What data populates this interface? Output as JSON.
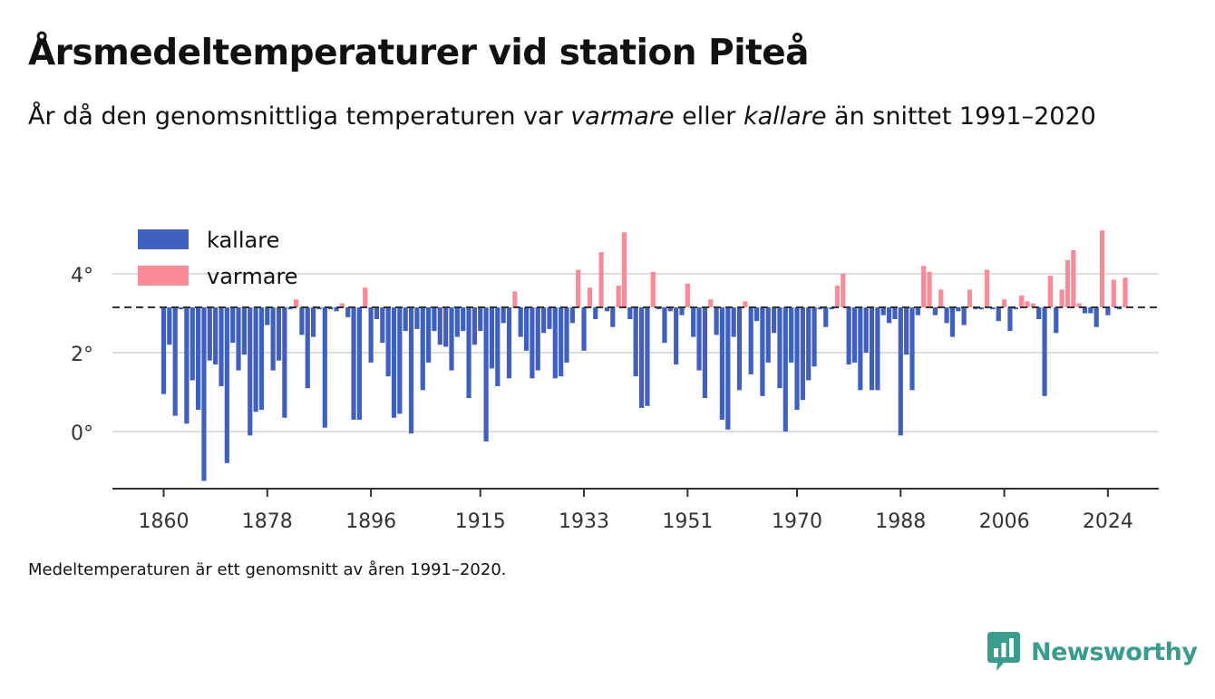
{
  "header": {
    "title": "Årsmedeltemperaturer vid station Piteå",
    "subtitle_part1": "År då den genomsnittliga temperaturen var ",
    "subtitle_em1": "varmare",
    "subtitle_part2": " eller ",
    "subtitle_em2": "kallare",
    "subtitle_part3": " än snittet 1991–2020"
  },
  "footer": {
    "note": "Medeltemperaturen är ett genomsnitt av åren 1991–2020.",
    "brand": "Newsworthy"
  },
  "colors": {
    "colder": "#3f60bf",
    "warmer": "#f98a98",
    "baseline": "#333333",
    "grid": "#dddddd",
    "brand": "#3a9b8f"
  },
  "chart_data": {
    "type": "bar",
    "x_ticks": [
      "1860",
      "1878",
      "1896",
      "1915",
      "1933",
      "1951",
      "1970",
      "1988",
      "2006",
      "2024"
    ],
    "y_ticks": [
      "0°",
      "2°",
      "4°"
    ],
    "ylim": [
      -1.5,
      5.4
    ],
    "baseline": 3.15,
    "legend": {
      "position": "top-left",
      "items": [
        "kallare",
        "varmare"
      ]
    },
    "series": [
      {
        "name": "kallare",
        "color": "#3f60bf"
      },
      {
        "name": "varmare",
        "color": "#f98a98"
      }
    ],
    "start_year": 1860,
    "values": [
      0.95,
      2.2,
      0.4,
      3.1,
      0.2,
      1.3,
      0.55,
      -1.25,
      1.8,
      1.7,
      1.15,
      -0.8,
      2.25,
      1.55,
      1.95,
      -0.1,
      0.5,
      0.55,
      2.7,
      1.55,
      1.8,
      0.35,
      3.1,
      3.35,
      2.45,
      1.1,
      2.4,
      3.1,
      0.1,
      3.1,
      3.05,
      3.25,
      2.9,
      0.3,
      0.3,
      3.65,
      1.75,
      2.85,
      2.25,
      1.4,
      0.35,
      0.45,
      2.55,
      -0.05,
      2.6,
      1.05,
      1.75,
      2.55,
      2.2,
      2.15,
      1.55,
      2.4,
      2.55,
      0.85,
      2.2,
      2.55,
      -0.25,
      1.6,
      1.15,
      2.75,
      1.35,
      3.55,
      2.4,
      2.05,
      1.35,
      1.55,
      2.5,
      2.6,
      1.35,
      1.4,
      1.75,
      2.75,
      4.1,
      2.05,
      3.65,
      2.85,
      4.55,
      3.05,
      2.65,
      3.7,
      5.05,
      2.85,
      1.4,
      0.6,
      0.65,
      4.05,
      3.1,
      2.25,
      3.05,
      1.7,
      2.95,
      3.75,
      2.4,
      1.55,
      0.85,
      3.35,
      2.45,
      0.3,
      0.05,
      2.4,
      1.05,
      3.3,
      1.45,
      2.8,
      0.9,
      1.75,
      2.5,
      1.1,
      0.0,
      1.75,
      0.55,
      0.8,
      1.3,
      1.65,
      3.1,
      2.65,
      3.1,
      3.7,
      4.0,
      1.7,
      1.75,
      1.05,
      2.0,
      1.05,
      1.05,
      2.95,
      2.75,
      2.85,
      -0.1,
      1.95,
      1.05,
      2.95,
      4.2,
      4.05,
      2.95,
      3.6,
      2.75,
      2.4,
      3.05,
      2.7,
      3.6,
      3.1,
      3.1,
      4.1,
      3.1,
      2.8,
      3.35,
      2.55,
      3.1,
      3.45,
      3.3,
      3.25,
      2.85,
      0.9,
      3.95,
      2.5,
      3.6,
      4.35,
      4.6,
      3.25,
      3.0,
      3.0,
      2.65,
      5.1,
      2.95,
      3.85,
      3.1,
      3.9
    ]
  }
}
